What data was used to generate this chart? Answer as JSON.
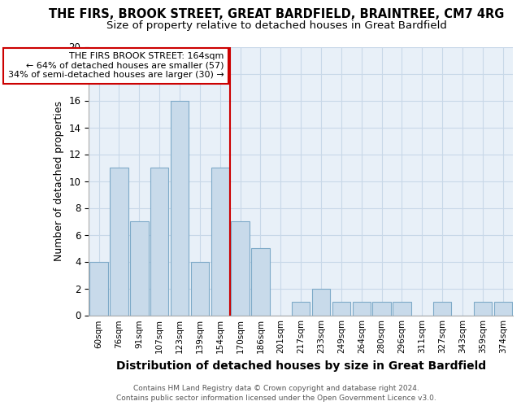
{
  "title": "THE FIRS, BROOK STREET, GREAT BARDFIELD, BRAINTREE, CM7 4RG",
  "subtitle": "Size of property relative to detached houses in Great Bardfield",
  "xlabel": "Distribution of detached houses by size in Great Bardfield",
  "ylabel": "Number of detached properties",
  "footnote1": "Contains HM Land Registry data © Crown copyright and database right 2024.",
  "footnote2": "Contains public sector information licensed under the Open Government Licence v3.0.",
  "annotation_line1": "THE FIRS BROOK STREET: 164sqm",
  "annotation_line2": "← 64% of detached houses are smaller (57)",
  "annotation_line3": "34% of semi-detached houses are larger (30) →",
  "bar_labels": [
    "60sqm",
    "76sqm",
    "91sqm",
    "107sqm",
    "123sqm",
    "139sqm",
    "154sqm",
    "170sqm",
    "186sqm",
    "201sqm",
    "217sqm",
    "233sqm",
    "249sqm",
    "264sqm",
    "280sqm",
    "296sqm",
    "311sqm",
    "327sqm",
    "343sqm",
    "359sqm",
    "374sqm"
  ],
  "bar_values": [
    4,
    11,
    7,
    11,
    16,
    4,
    11,
    7,
    5,
    0,
    1,
    2,
    1,
    1,
    1,
    1,
    0,
    1,
    0,
    1,
    1
  ],
  "bar_color": "#c8daea",
  "bar_edge_color": "#7eaac8",
  "vline_color": "#cc0000",
  "vline_x_index": 7,
  "annotation_box_color": "#cc0000",
  "ylim": [
    0,
    20
  ],
  "yticks": [
    0,
    2,
    4,
    6,
    8,
    10,
    12,
    14,
    16,
    18,
    20
  ],
  "grid_color": "#c8d8e8",
  "bg_color": "#e8f0f8",
  "title_fontsize": 10.5,
  "subtitle_fontsize": 9.5,
  "ylabel_fontsize": 9,
  "xlabel_fontsize": 10
}
